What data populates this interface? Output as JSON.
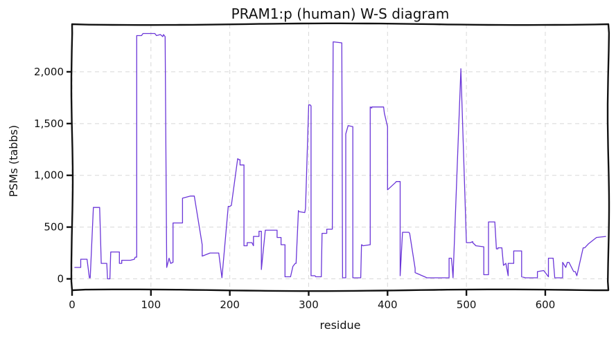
{
  "chart_data": {
    "type": "line",
    "title": "PRAM1:p (human) W-S diagram",
    "xlabel": "residue",
    "ylabel": "PSMs (tabbs)",
    "xlim": [
      0,
      680
    ],
    "ylim": [
      -110,
      2460
    ],
    "grid": true,
    "x_ticks": [
      0,
      100,
      200,
      300,
      400,
      500,
      600
    ],
    "x_tick_labels": [
      "0",
      "100",
      "200",
      "300",
      "400",
      "500",
      "600"
    ],
    "y_ticks": [
      0,
      500,
      1000,
      1500,
      2000
    ],
    "y_tick_labels": [
      "0",
      "500",
      "1,000",
      "1,500",
      "2,000"
    ],
    "color": "#6a35d8",
    "series": [
      {
        "x": [
          3,
          11,
          11,
          19,
          22,
          23,
          27,
          27,
          35,
          36,
          37,
          37,
          44,
          45,
          48,
          49,
          49,
          60,
          60,
          63,
          63,
          74,
          74,
          79,
          80,
          82,
          82,
          88,
          90,
          105,
          107,
          112,
          115,
          116,
          118,
          120,
          120,
          123,
          125,
          128,
          128,
          138,
          140,
          140,
          150,
          150,
          155,
          165,
          165,
          175,
          186,
          190,
          190,
          198,
          200,
          202,
          202,
          210,
          212,
          213,
          213,
          218,
          218,
          222,
          222,
          228,
          230,
          230,
          237,
          237,
          240,
          240,
          245,
          253,
          253,
          260,
          260,
          265,
          265,
          270,
          270,
          277,
          280,
          280,
          283,
          284,
          287,
          287,
          295,
          296,
          300,
          302,
          303,
          303,
          308,
          309,
          316,
          317,
          323,
          323,
          330,
          331,
          342,
          343,
          347,
          347,
          350,
          350,
          356,
          356,
          366,
          367,
          369,
          369,
          378,
          378,
          380,
          380,
          395,
          396,
          400,
          400,
          410,
          411,
          416,
          416,
          419,
          427,
          428,
          435,
          435,
          450,
          450,
          465,
          468,
          470,
          478,
          478,
          481,
          482,
          483,
          493,
          493,
          500,
          505,
          508,
          508,
          512,
          512,
          522,
          522,
          528,
          528,
          533,
          536,
          538,
          540,
          540,
          545,
          547,
          550,
          553,
          553,
          560,
          560,
          569,
          570,
          570,
          575,
          575,
          585,
          589,
          590,
          590,
          598,
          598,
          604,
          604,
          610,
          612,
          612,
          622,
          622,
          626,
          628,
          630,
          630,
          636,
          638,
          640,
          640,
          648,
          650,
          655,
          655,
          665,
          665,
          677
        ],
        "y": [
          110,
          110,
          190,
          190,
          10,
          10,
          680,
          690,
          690,
          420,
          150,
          150,
          150,
          0,
          0,
          260,
          260,
          260,
          150,
          150,
          180,
          180,
          180,
          190,
          210,
          210,
          2350,
          2350,
          2370,
          2370,
          2350,
          2360,
          2340,
          2360,
          2340,
          110,
          110,
          200,
          150,
          160,
          540,
          540,
          540,
          780,
          800,
          800,
          800,
          330,
          220,
          250,
          250,
          10,
          10,
          700,
          700,
          710,
          710,
          1160,
          1150,
          1150,
          1100,
          1100,
          320,
          320,
          350,
          350,
          320,
          410,
          410,
          460,
          460,
          90,
          470,
          470,
          470,
          470,
          400,
          400,
          330,
          330,
          20,
          20,
          120,
          120,
          150,
          150,
          660,
          650,
          640,
          680,
          1680,
          1680,
          1670,
          30,
          30,
          20,
          20,
          440,
          440,
          480,
          480,
          2290,
          2280,
          10,
          10,
          1400,
          1480,
          1480,
          1470,
          10,
          10,
          330,
          320,
          320,
          330,
          1660,
          1650,
          1660,
          1660,
          1600,
          1470,
          860,
          930,
          940,
          940,
          30,
          450,
          450,
          440,
          100,
          60,
          10,
          10,
          10,
          10,
          10,
          10,
          200,
          200,
          120,
          10,
          2020,
          2030,
          350,
          350,
          360,
          350,
          320,
          320,
          310,
          40,
          40,
          550,
          550,
          550,
          290,
          290,
          300,
          300,
          130,
          150,
          30,
          150,
          150,
          270,
          270,
          270,
          20,
          10,
          10,
          10,
          10,
          10,
          70,
          80,
          80,
          20,
          200,
          200,
          10,
          10,
          10,
          160,
          110,
          160,
          160,
          160,
          70,
          70,
          30,
          30,
          300,
          300,
          340,
          340,
          400,
          400,
          410
        ]
      }
    ]
  }
}
